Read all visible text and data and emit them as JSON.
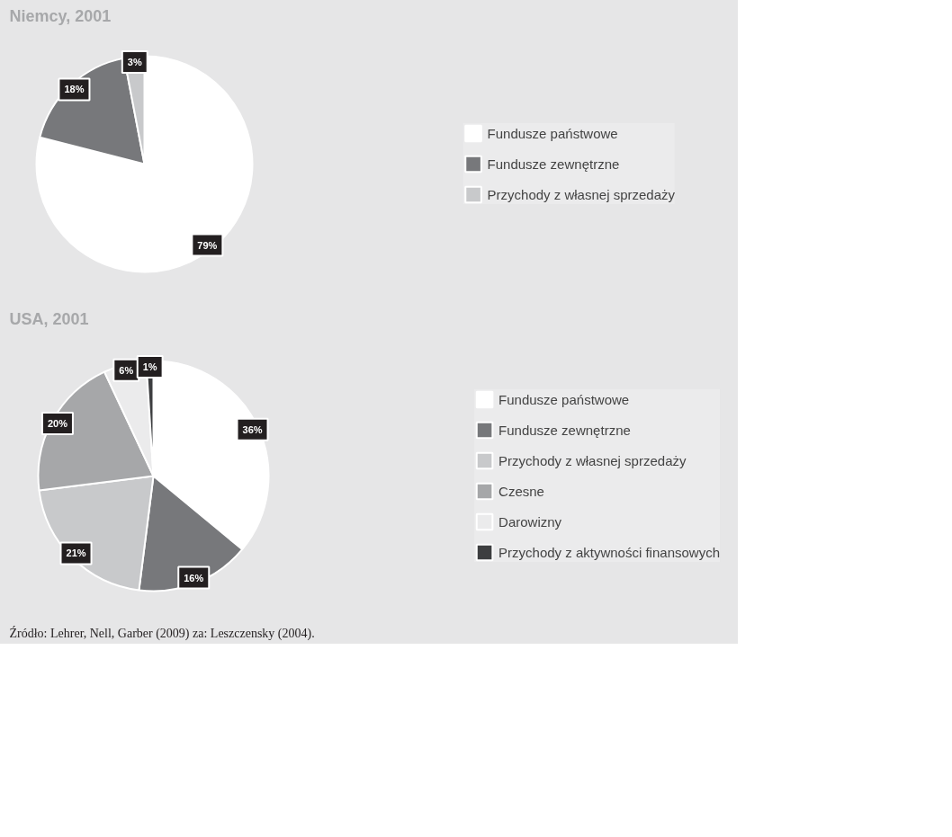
{
  "chart_data": [
    {
      "type": "pie",
      "title": "Niemcy, 2001",
      "categories": [
        "Fundusze państwowe",
        "Fundusze zewnętrzne",
        "Przychody z własnej sprzedaży"
      ],
      "values": [
        79,
        18,
        3
      ],
      "colors": [
        "#ffffff",
        "#77787b",
        "#c8c9cb"
      ],
      "value_labels": [
        "79%",
        "18%",
        "3%"
      ],
      "legend": "right"
    },
    {
      "type": "pie",
      "title": "USA, 2001",
      "categories": [
        "Fundusze państwowe",
        "Fundusze zewnętrzne",
        "Przychody z własnej sprzedaży",
        "Czesne",
        "Darowizny",
        "Przychody z aktywności finansowych"
      ],
      "values": [
        36,
        16,
        21,
        20,
        6,
        1
      ],
      "colors": [
        "#ffffff",
        "#77787b",
        "#c8c9cb",
        "#a6a7a9",
        "#ebebec",
        "#3d3e40"
      ],
      "value_labels": [
        "36%",
        "16%",
        "21%",
        "20%",
        "6%",
        "1%"
      ],
      "legend": "right",
      "annotations": [
        "Źródło: Lehrer, Nell, Garber (2009) za: Leszczensky (2004)."
      ]
    }
  ]
}
